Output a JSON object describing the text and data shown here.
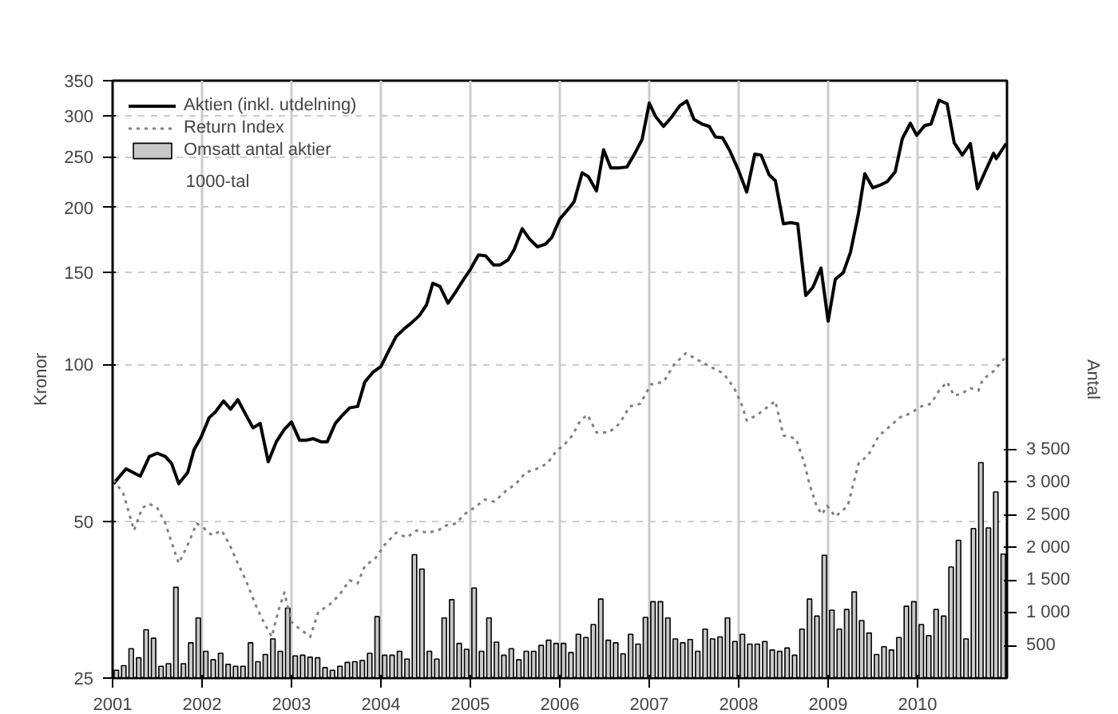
{
  "chart_data": {
    "type": "line",
    "ylabel": "Kronor",
    "y2label": "Antal",
    "annotations": [
      "1000-tal"
    ],
    "log": "y",
    "grid": true,
    "legend": "top",
    "xlim": [
      2001,
      2011
    ],
    "xticks": [
      2001,
      2002,
      2003,
      2004,
      2005,
      2006,
      2007,
      2008,
      2009,
      2010
    ],
    "ylim": [
      25,
      350
    ],
    "yticks": [
      25,
      50,
      100,
      150,
      200,
      250,
      300,
      350
    ],
    "y2lim": [
      0,
      9150
    ],
    "y2ticks": [
      {
        "value": 500,
        "label": "500"
      },
      {
        "value": 1000,
        "label": "1 000"
      },
      {
        "value": 1500,
        "label": "1 500"
      },
      {
        "value": 2000,
        "label": "2 000"
      },
      {
        "value": 2500,
        "label": "2 500"
      },
      {
        "value": 3000,
        "label": "3 000"
      },
      {
        "value": 3500,
        "label": "3 500"
      }
    ],
    "series": [
      {
        "name": "Omsatt antal aktier",
        "type": "bar",
        "axis": "y2",
        "color": "#c8c8c8",
        "x": [
          2001.042,
          2001.125,
          2001.208,
          2001.292,
          2001.375,
          2001.458,
          2001.542,
          2001.625,
          2001.708,
          2001.792,
          2001.875,
          2001.958,
          2002.042,
          2002.125,
          2002.208,
          2002.292,
          2002.375,
          2002.458,
          2002.542,
          2002.625,
          2002.708,
          2002.792,
          2002.875,
          2002.958,
          2003.042,
          2003.125,
          2003.208,
          2003.292,
          2003.375,
          2003.458,
          2003.542,
          2003.625,
          2003.708,
          2003.792,
          2003.875,
          2003.958,
          2004.042,
          2004.125,
          2004.208,
          2004.292,
          2004.375,
          2004.458,
          2004.542,
          2004.625,
          2004.708,
          2004.792,
          2004.875,
          2004.958,
          2005.042,
          2005.125,
          2005.208,
          2005.292,
          2005.375,
          2005.458,
          2005.542,
          2005.625,
          2005.708,
          2005.792,
          2005.875,
          2005.958,
          2006.042,
          2006.125,
          2006.208,
          2006.292,
          2006.375,
          2006.458,
          2006.542,
          2006.625,
          2006.708,
          2006.792,
          2006.875,
          2006.958,
          2007.042,
          2007.125,
          2007.208,
          2007.292,
          2007.375,
          2007.458,
          2007.542,
          2007.625,
          2007.708,
          2007.792,
          2007.875,
          2007.958,
          2008.042,
          2008.125,
          2008.208,
          2008.292,
          2008.375,
          2008.458,
          2008.542,
          2008.625,
          2008.708,
          2008.792,
          2008.875,
          2008.958,
          2009.042,
          2009.125,
          2009.208,
          2009.292,
          2009.375,
          2009.458,
          2009.542,
          2009.625,
          2009.708,
          2009.792,
          2009.875,
          2009.958,
          2010.042,
          2010.125,
          2010.208,
          2010.292,
          2010.375,
          2010.458,
          2010.542,
          2010.625,
          2010.708,
          2010.792,
          2010.875,
          2010.958
        ],
        "values": [
          120,
          190,
          450,
          310,
          740,
          610,
          180,
          220,
          1390,
          220,
          540,
          920,
          410,
          280,
          380,
          210,
          180,
          180,
          540,
          250,
          360,
          600,
          410,
          1070,
          340,
          350,
          320,
          310,
          160,
          120,
          180,
          240,
          250,
          270,
          380,
          940,
          350,
          350,
          410,
          290,
          1890,
          1670,
          410,
          290,
          920,
          1200,
          530,
          440,
          1380,
          410,
          920,
          550,
          350,
          450,
          280,
          410,
          410,
          500,
          580,
          530,
          530,
          390,
          670,
          620,
          820,
          1210,
          580,
          540,
          370,
          670,
          520,
          930,
          1170,
          1170,
          920,
          600,
          540,
          590,
          410,
          750,
          600,
          630,
          920,
          560,
          670,
          520,
          520,
          560,
          430,
          410,
          460,
          350,
          750,
          1210,
          950,
          1880,
          1040,
          750,
          1050,
          1320,
          880,
          690,
          360,
          480,
          430,
          620,
          1100,
          1170,
          820,
          650,
          1050,
          950,
          1700,
          2110,
          600,
          2290,
          3300,
          2300,
          2850,
          1900
        ]
      },
      {
        "name": "Aktien (inkl. utdelning)",
        "color": "#000000",
        "line_style": "solid",
        "x": [
          2001.01,
          2001.15,
          2001.31,
          2001.41,
          2001.5,
          2001.59,
          2001.66,
          2001.74,
          2001.84,
          2001.91,
          2001.99,
          2002.08,
          2002.15,
          2002.24,
          2002.32,
          2002.4,
          2002.49,
          2002.57,
          2002.65,
          2002.74,
          2002.83,
          2002.92,
          2003.0,
          2003.09,
          2003.17,
          2003.24,
          2003.33,
          2003.4,
          2003.49,
          2003.56,
          2003.65,
          2003.74,
          2003.82,
          2003.91,
          2004.0,
          2004.08,
          2004.17,
          2004.26,
          2004.34,
          2004.43,
          2004.51,
          2004.58,
          2004.66,
          2004.75,
          2004.84,
          2004.93,
          2005.0,
          2005.09,
          2005.17,
          2005.26,
          2005.33,
          2005.42,
          2005.49,
          2005.58,
          2005.66,
          2005.75,
          2005.84,
          2005.91,
          2006.0,
          2006.09,
          2006.16,
          2006.25,
          2006.32,
          2006.41,
          2006.49,
          2006.57,
          2006.66,
          2006.75,
          2006.84,
          2006.92,
          2007.0,
          2007.07,
          2007.16,
          2007.25,
          2007.34,
          2007.42,
          2007.5,
          2007.59,
          2007.67,
          2007.74,
          2007.82,
          2007.9,
          2008.0,
          2008.09,
          2008.18,
          2008.25,
          2008.34,
          2008.41,
          2008.5,
          2008.58,
          2008.66,
          2008.75,
          2008.83,
          2008.92,
          2009.0,
          2009.08,
          2009.17,
          2009.25,
          2009.34,
          2009.41,
          2009.5,
          2009.59,
          2009.66,
          2009.75,
          2009.83,
          2009.92,
          2009.99,
          2010.08,
          2010.15,
          2010.24,
          2010.33,
          2010.41,
          2010.5,
          2010.59,
          2010.67,
          2010.76,
          2010.85,
          2010.88,
          2010.99
        ],
        "values": [
          59,
          63,
          61,
          66.5,
          67.5,
          66.5,
          64.5,
          59,
          62,
          68.5,
          72.5,
          79,
          81,
          85,
          82,
          85.5,
          80,
          75.5,
          77,
          65,
          71,
          75,
          77.5,
          71.5,
          71.5,
          72,
          71,
          71,
          77,
          79.5,
          82.5,
          83,
          92.5,
          96.5,
          99,
          105.5,
          113,
          117,
          120,
          124,
          130,
          143,
          141,
          131,
          138,
          146,
          152,
          162,
          161.5,
          155,
          155,
          158.5,
          166,
          182,
          174,
          168,
          170,
          175,
          190,
          198,
          205,
          233,
          229,
          215,
          258,
          238,
          238,
          239,
          254,
          270,
          317,
          299,
          286,
          298,
          313,
          320,
          295,
          289,
          286,
          273,
          272,
          257,
          235,
          214,
          253,
          252,
          231,
          225,
          186,
          187,
          186,
          135.5,
          140.5,
          153,
          121,
          145.5,
          150,
          164,
          195,
          232,
          218,
          221,
          224,
          234,
          271,
          290,
          275,
          287,
          289,
          321,
          316,
          266,
          252,
          265,
          217,
          235,
          254,
          248,
          265
        ]
      },
      {
        "name": "Return Index",
        "color": "#808080",
        "line_style": "dotted",
        "x": [
          2001.01,
          2001.12,
          2001.24,
          2001.33,
          2001.41,
          2001.5,
          2001.59,
          2001.67,
          2001.74,
          2001.84,
          2001.94,
          2002.02,
          2002.11,
          2002.22,
          2002.31,
          2002.4,
          2002.49,
          2002.6,
          2002.69,
          2002.78,
          2002.85,
          2002.92,
          2003.0,
          2003.1,
          2003.21,
          2003.3,
          2003.42,
          2003.53,
          2003.65,
          2003.74,
          2003.82,
          2003.94,
          2004.04,
          2004.17,
          2004.29,
          2004.4,
          2004.52,
          2004.64,
          2004.72,
          2004.84,
          2004.93,
          2005.04,
          2005.16,
          2005.27,
          2005.39,
          2005.51,
          2005.62,
          2005.74,
          2005.86,
          2005.97,
          2006.03,
          2006.14,
          2006.23,
          2006.31,
          2006.41,
          2006.55,
          2006.67,
          2006.78,
          2006.9,
          2007.02,
          2007.16,
          2007.28,
          2007.41,
          2007.54,
          2007.68,
          2007.83,
          2007.95,
          2008.03,
          2008.09,
          2008.21,
          2008.29,
          2008.41,
          2008.5,
          2008.64,
          2008.73,
          2008.79,
          2008.87,
          2008.93,
          2008.99,
          2009.08,
          2009.22,
          2009.34,
          2009.45,
          2009.57,
          2009.69,
          2009.8,
          2009.92,
          2010.04,
          2010.15,
          2010.24,
          2010.33,
          2010.41,
          2010.5,
          2010.59,
          2010.68,
          2010.73,
          2010.85,
          2010.99
        ],
        "values": [
          60,
          56.5,
          48,
          53,
          54,
          53,
          49.5,
          45,
          41.5,
          45,
          49.5,
          48.5,
          47,
          48,
          45,
          41.5,
          38.5,
          34.5,
          32,
          30,
          33.5,
          36.5,
          32,
          31,
          30,
          33.5,
          34.5,
          36,
          38.5,
          38,
          41,
          42.5,
          45,
          47.5,
          46.5,
          48,
          47.5,
          48,
          49,
          49.5,
          51.5,
          53,
          55,
          54.5,
          57,
          59,
          62,
          63,
          64.5,
          68.5,
          69.5,
          73,
          78,
          80,
          74,
          74,
          77,
          83,
          84,
          91.5,
          92.5,
          100,
          105,
          102,
          99,
          96,
          90,
          84,
          78,
          80,
          82,
          85,
          73,
          72,
          65,
          59,
          53.5,
          51.5,
          53.5,
          51,
          53.5,
          64.5,
          67,
          73,
          76,
          79,
          80.5,
          83,
          84,
          89,
          92.5,
          87,
          88,
          90,
          89,
          93.5,
          97,
          103.5
        ]
      }
    ]
  }
}
